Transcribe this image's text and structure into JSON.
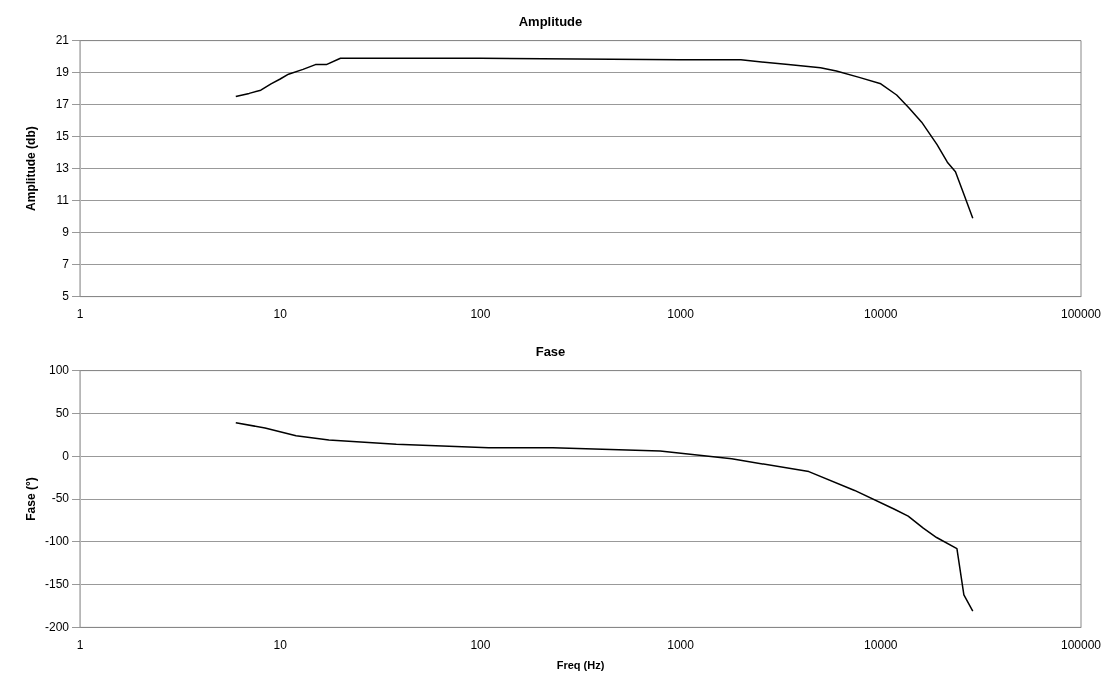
{
  "chart_data": [
    {
      "type": "line",
      "title": "Amplitude",
      "ylabel": "Amplitude (db)",
      "x": [
        6,
        7,
        8,
        9,
        10,
        11,
        13,
        15,
        17,
        20,
        100,
        1000,
        2000,
        3450,
        5000,
        6000,
        7800,
        10000,
        12000,
        13800,
        16000,
        19100,
        21500,
        23600,
        26000,
        28800
      ],
      "series": [
        {
          "color": "#000000",
          "values": [
            17.5,
            17.7,
            17.9,
            18.3,
            18.6,
            18.9,
            19.2,
            19.5,
            19.5,
            19.9,
            19.9,
            19.8,
            19.8,
            19.5,
            19.3,
            19.1,
            18.7,
            18.3,
            17.6,
            16.8,
            15.9,
            14.5,
            13.4,
            12.8,
            11.4,
            9.9
          ]
        }
      ],
      "xlim": [
        1,
        100000
      ],
      "xticks": [
        1,
        10,
        100,
        1000,
        10000,
        100000
      ],
      "ylim": [
        5,
        21
      ],
      "yticks": [
        5,
        7,
        9,
        11,
        13,
        15,
        17,
        19,
        21
      ],
      "log": "x",
      "grid": "y",
      "legend": false,
      "marker": "none",
      "line_style": "solid"
    },
    {
      "type": "line",
      "title": "Fase",
      "xlabel": "Freq (Hz)",
      "ylabel": "Fase (°)",
      "x": [
        6,
        8.4,
        12,
        17.5,
        38,
        110,
        230,
        790,
        1800,
        4370,
        7400,
        11700,
        13700,
        16300,
        19000,
        24000,
        26000,
        28800
      ],
      "series": [
        {
          "color": "#000000",
          "values": [
            39,
            33,
            24,
            19,
            14,
            10,
            10,
            6,
            -3,
            -18,
            -40,
            -62,
            -70,
            -84,
            -95,
            -108,
            -162,
            -181
          ]
        }
      ],
      "xlim": [
        1,
        100000
      ],
      "xticks": [
        1,
        10,
        100,
        1000,
        10000,
        100000
      ],
      "ylim": [
        -200,
        100
      ],
      "yticks": [
        -200,
        -150,
        -100,
        -50,
        0,
        50,
        100
      ],
      "log": "x",
      "grid": "y",
      "legend": false,
      "marker": "none",
      "line_style": "solid"
    }
  ]
}
